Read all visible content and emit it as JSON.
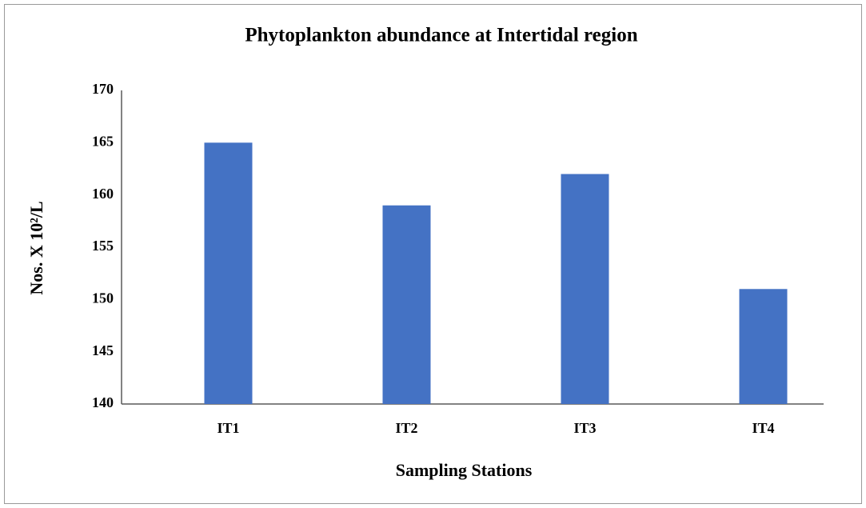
{
  "chart_data": {
    "type": "bar",
    "title": "Phytoplankton  abundance at Intertidal  region",
    "x_label": "Sampling Stations",
    "y_label": "Nos. X 10²/L",
    "categories": [
      "IT1",
      "IT2",
      "IT3",
      "IT4"
    ],
    "values": [
      165,
      159,
      162,
      151
    ],
    "color": "#4472c4",
    "ylim": [
      140,
      170
    ],
    "yticks": [
      140,
      145,
      150,
      155,
      160,
      165,
      170
    ],
    "grid": false
  }
}
